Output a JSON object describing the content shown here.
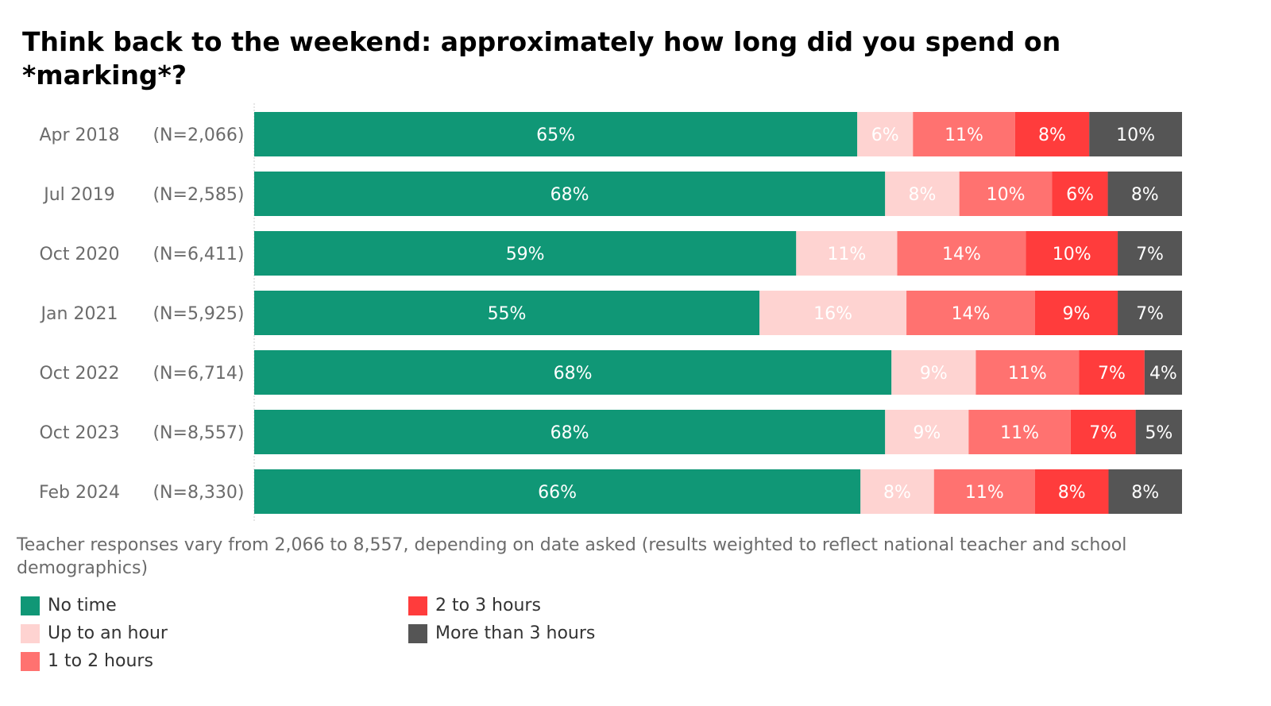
{
  "chart_data": {
    "type": "bar",
    "orientation": "horizontal",
    "stacked": true,
    "title": "Think back to the weekend: approximately how long did you spend on *marking*?",
    "categories": [
      "Apr 2018",
      "Jul 2019",
      "Oct 2020",
      "Jan 2021",
      "Oct 2022",
      "Oct 2023",
      "Feb 2024"
    ],
    "sample_sizes": [
      "(N=2,066)",
      "(N=2,585)",
      "(N=6,411)",
      "(N=5,925)",
      "(N=6,714)",
      "(N=8,557)",
      "(N=8,330)"
    ],
    "series": [
      {
        "name": "No time",
        "color": "#109776",
        "values": [
          65,
          68,
          59,
          55,
          68,
          68,
          66
        ]
      },
      {
        "name": "Up to an hour",
        "color": "#fed3d1",
        "values": [
          6,
          8,
          11,
          16,
          9,
          9,
          8
        ]
      },
      {
        "name": "1 to 2 hours",
        "color": "#ff7270",
        "values": [
          11,
          10,
          14,
          14,
          11,
          11,
          11
        ]
      },
      {
        "name": "2 to 3 hours",
        "color": "#ff3c3c",
        "values": [
          8,
          6,
          10,
          9,
          7,
          7,
          8
        ]
      },
      {
        "name": "More than 3 hours",
        "color": "#555555",
        "values": [
          10,
          8,
          7,
          7,
          4,
          5,
          8
        ]
      }
    ],
    "value_suffix": "%",
    "legend_position": "bottom-left",
    "grid": false
  },
  "footnote": "Teacher responses vary from 2,066 to 8,557, depending on date asked (results weighted to reflect national teacher and school demographics)"
}
